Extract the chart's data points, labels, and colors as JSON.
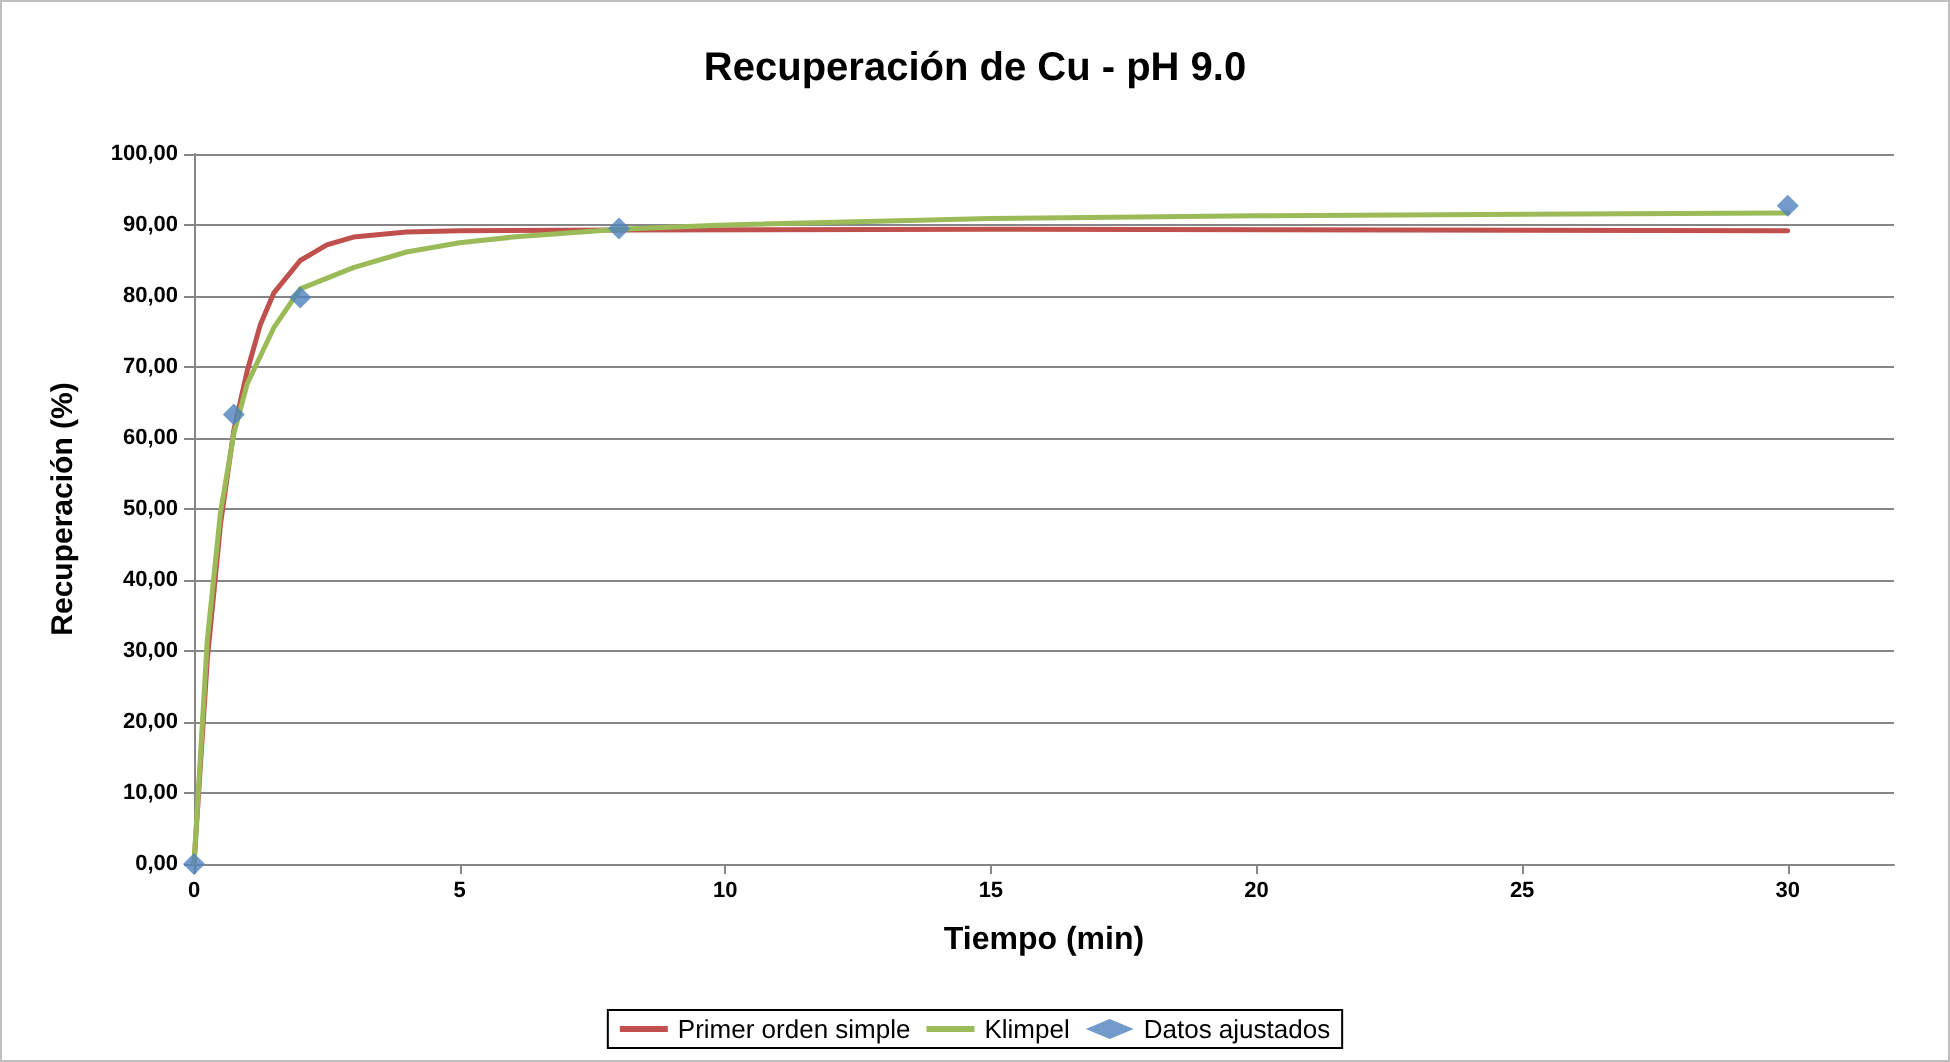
{
  "chart_data": {
    "type": "line",
    "title": "Recuperación de Cu - pH 9.0",
    "xlabel": "Tiempo (min)",
    "ylabel": "Recuperación (%)",
    "xlim": [
      0,
      32
    ],
    "xticks": [
      0,
      5,
      10,
      15,
      20,
      25,
      30
    ],
    "ylim": [
      0,
      100
    ],
    "yticks": [
      {
        "value": 0,
        "label": "0,00"
      },
      {
        "value": 10,
        "label": "10,00"
      },
      {
        "value": 20,
        "label": "20,00"
      },
      {
        "value": 30,
        "label": "30,00"
      },
      {
        "value": 40,
        "label": "40,00"
      },
      {
        "value": 50,
        "label": "50,00"
      },
      {
        "value": 60,
        "label": "60,00"
      },
      {
        "value": 70,
        "label": "70,00"
      },
      {
        "value": 80,
        "label": "80,00"
      },
      {
        "value": 90,
        "label": "90,00"
      },
      {
        "value": 100,
        "label": "100,00"
      }
    ],
    "grid": "y",
    "legend": "bottom",
    "marker": "none",
    "series": [
      {
        "name": "Primer orden simple",
        "color": "#c0504d",
        "x": [
          0,
          0.25,
          0.5,
          0.75,
          1,
          1.25,
          1.5,
          2,
          2.5,
          3,
          4,
          5,
          8,
          15,
          30
        ],
        "values": [
          0,
          28.8,
          47.9,
          61.1,
          69.4,
          76,
          80.4,
          85,
          87.2,
          88.3,
          89,
          89.2,
          89.3,
          89.4,
          89.2
        ]
      },
      {
        "name": "Klimpel",
        "color": "#9bbb59",
        "x": [
          0,
          0.25,
          0.5,
          0.75,
          1,
          1.5,
          2,
          3,
          4,
          5,
          6,
          8,
          10,
          15,
          20,
          30
        ],
        "values": [
          0,
          31.5,
          49.6,
          60.6,
          67.6,
          75.5,
          81,
          84,
          86.2,
          87.5,
          88.3,
          89.4,
          90,
          90.9,
          91.3,
          91.7
        ]
      },
      {
        "name": "Datos ajustados",
        "type": "scatter",
        "marker": "diamond",
        "color": "#4f81bd",
        "x": [
          0,
          0.75,
          2,
          8,
          30
        ],
        "values": [
          0,
          63.3,
          79.8,
          89.5,
          92.7
        ]
      }
    ]
  }
}
